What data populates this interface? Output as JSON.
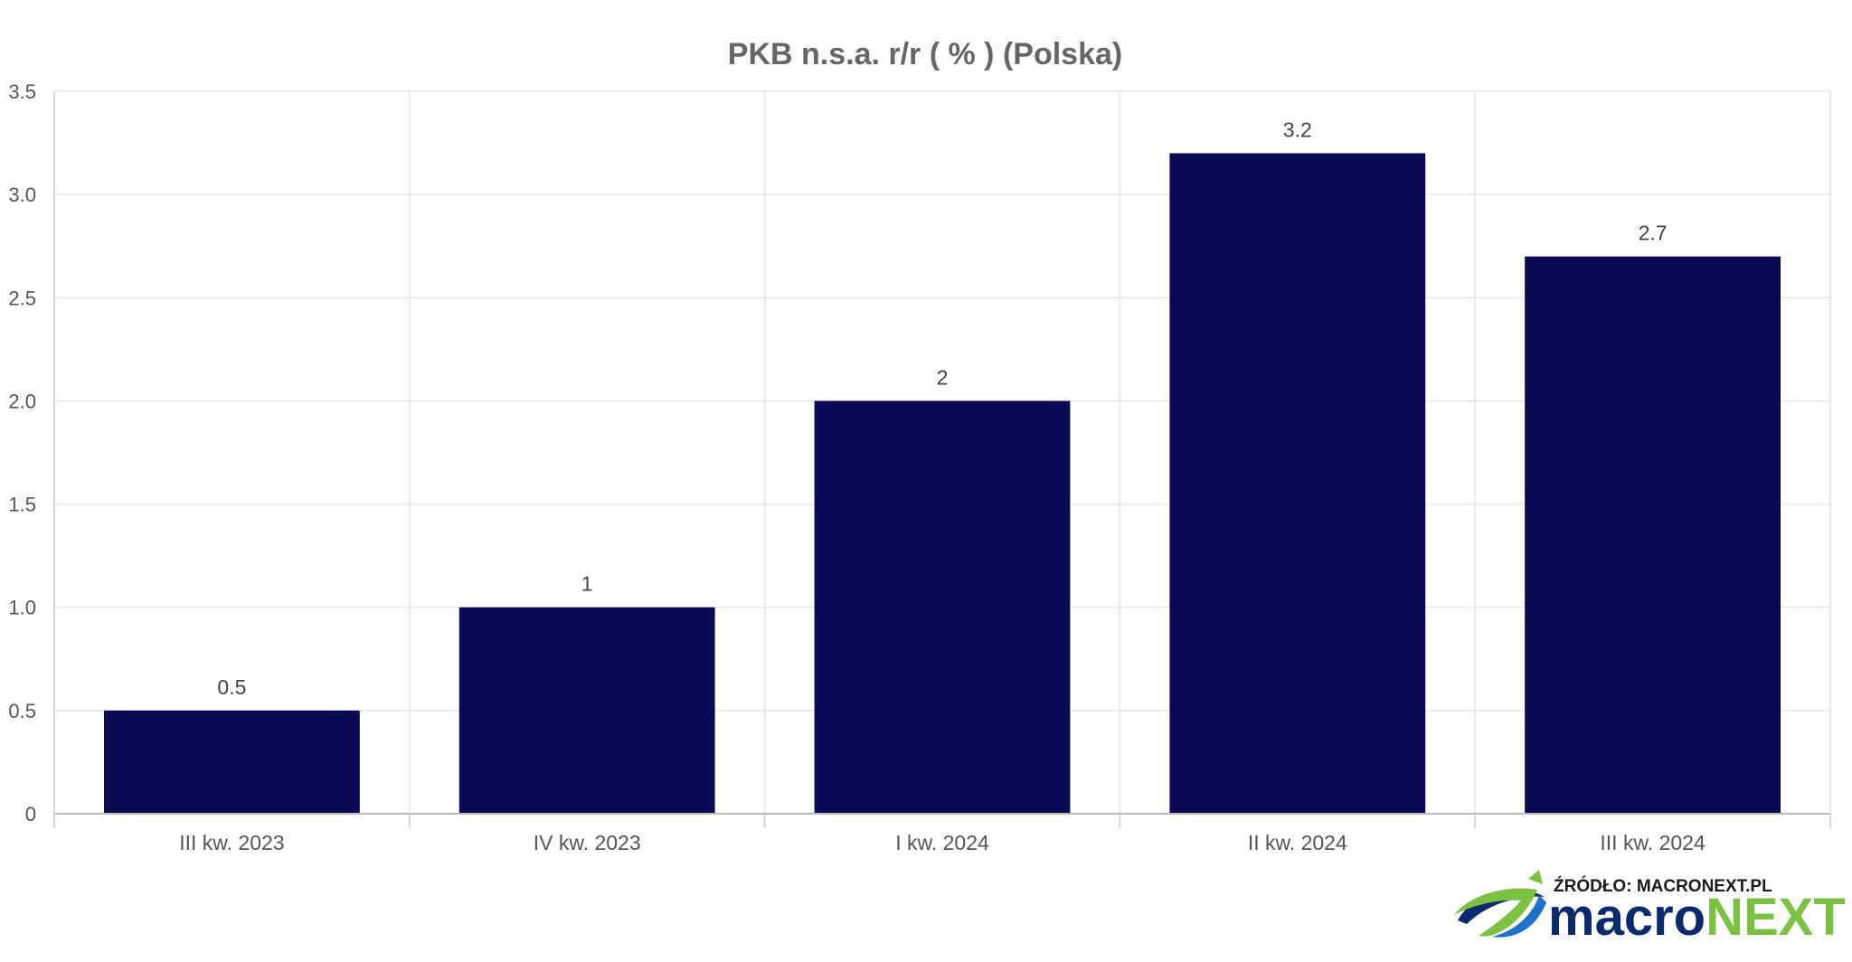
{
  "chart_data": {
    "type": "bar",
    "title": "PKB n.s.a. r/r ( % ) (Polska)",
    "categories": [
      "III kw. 2023",
      "IV kw. 2023",
      "I kw. 2024",
      "II kw. 2024",
      "III kw. 2024"
    ],
    "values": [
      0.5,
      1,
      2,
      3.2,
      2.7
    ],
    "data_labels": [
      "0.5",
      "1",
      "2",
      "3.2",
      "2.7"
    ],
    "y_ticks": [
      "0",
      "0.5",
      "1.0",
      "1.5",
      "2.0",
      "2.5",
      "3.0",
      "3.5"
    ],
    "ylim": [
      0,
      3.5
    ],
    "xlabel": "",
    "ylabel": "",
    "grid": true,
    "legend": "none",
    "bar_color": "#0a0a55"
  },
  "branding": {
    "source_label": "ŹRÓDŁO: MACRONEXT.PL",
    "logo_part1": "macro",
    "logo_part2": "NEXT",
    "logo_color_dark": "#0a2a6e",
    "logo_color_green": "#7cc242"
  }
}
